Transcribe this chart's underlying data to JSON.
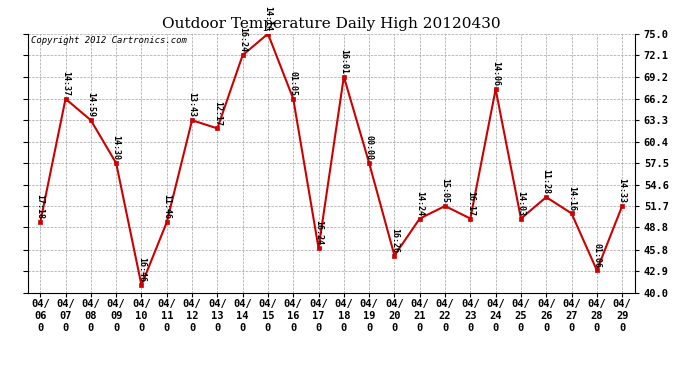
{
  "title": "Outdoor Temperature Daily High 20120430",
  "copyright": "Copyright 2012 Cartronics.com",
  "dates": [
    "04/06",
    "04/07",
    "04/08",
    "04/09",
    "04/10",
    "04/11",
    "04/12",
    "04/13",
    "04/14",
    "04/15",
    "04/16",
    "04/17",
    "04/18",
    "04/19",
    "04/20",
    "04/21",
    "04/22",
    "04/23",
    "04/24",
    "04/25",
    "04/26",
    "04/27",
    "04/28",
    "04/29"
  ],
  "values": [
    49.5,
    66.2,
    63.3,
    57.5,
    41.0,
    49.5,
    63.3,
    62.2,
    72.1,
    75.0,
    66.2,
    46.0,
    69.2,
    57.5,
    45.0,
    50.0,
    51.7,
    50.0,
    67.5,
    50.0,
    52.9,
    50.7,
    43.0,
    51.7
  ],
  "times": [
    "17:18",
    "14:37",
    "14:59",
    "14:30",
    "16:46",
    "11:46",
    "13:43",
    "12:17",
    "16:24",
    "14:14",
    "01:05",
    "16:24",
    "16:01",
    "00:00",
    "16:26",
    "14:24",
    "15:05",
    "16:17",
    "14:06",
    "14:03",
    "11:28",
    "14:16",
    "01:06",
    "14:33"
  ],
  "line_color": "#cc0000",
  "marker_color": "#cc0000",
  "bg_color": "#ffffff",
  "grid_color": "#999999",
  "ylim_min": 40.0,
  "ylim_max": 75.0,
  "yticks": [
    40.0,
    42.9,
    45.8,
    48.8,
    51.7,
    54.6,
    57.5,
    60.4,
    63.3,
    66.2,
    69.2,
    72.1,
    75.0
  ],
  "title_fontsize": 11,
  "copyright_fontsize": 6.5,
  "label_fontsize": 6.0,
  "tick_fontsize": 7.5
}
